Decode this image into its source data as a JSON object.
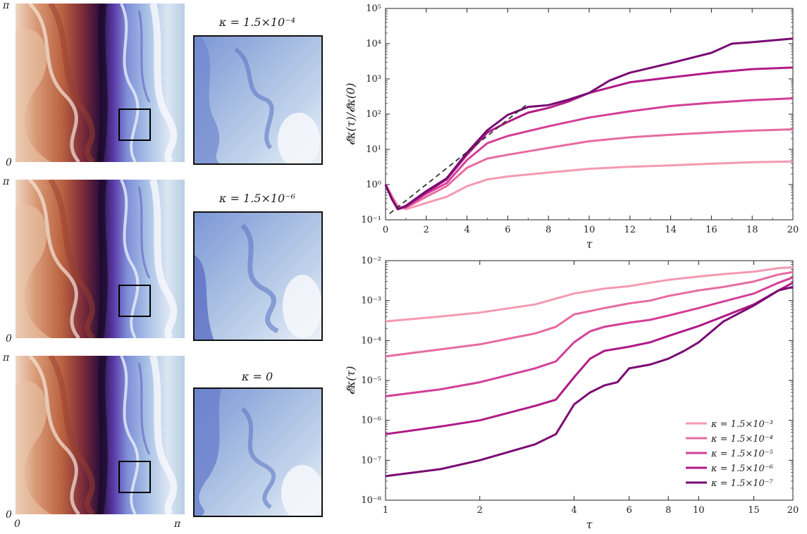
{
  "fields": [
    {
      "axis_top": "π",
      "axis_bottom": "0",
      "zoom_title": "κ = 1.5×10⁻⁴"
    },
    {
      "axis_top": "π",
      "axis_bottom": "0",
      "zoom_title": "κ = 1.5×10⁻⁶"
    },
    {
      "axis_top": "π",
      "axis_bottom": "0",
      "zoom_title": "κ = 0"
    }
  ],
  "field_xaxis": {
    "left": "0",
    "right": "π"
  },
  "colors": {
    "k1": "#f49ab1",
    "k2": "#e86aa0",
    "k3": "#d43f97",
    "k4": "#b01a86",
    "k5": "#7a0a73",
    "dashed": "#333333"
  },
  "chart_data": [
    {
      "type": "line",
      "xlabel": "τ",
      "ylabel": "𝓔κ(τ)/𝓔κ(0)",
      "yscale": "log",
      "xlim": [
        0,
        20
      ],
      "ylim": [
        0.1,
        100000
      ],
      "xticks": [
        "0",
        "2",
        "4",
        "6",
        "8",
        "10",
        "12",
        "14",
        "16",
        "18",
        "20"
      ],
      "yticks": [
        "10⁻¹",
        "10⁰",
        "10¹",
        "10²",
        "10³",
        "10⁴",
        "10⁵"
      ],
      "grid": false,
      "series": [
        {
          "color": "k1",
          "x": [
            0,
            0.3,
            0.6,
            1,
            2,
            3,
            4,
            5,
            6,
            8,
            10,
            12,
            14,
            16,
            18,
            20
          ],
          "y": [
            1,
            0.5,
            0.25,
            0.2,
            0.3,
            0.45,
            0.9,
            1.4,
            1.7,
            2.2,
            2.8,
            3.2,
            3.5,
            3.9,
            4.3,
            4.5
          ]
        },
        {
          "color": "k2",
          "x": [
            0,
            0.3,
            0.6,
            1,
            2,
            3,
            4,
            5,
            6,
            8,
            10,
            12,
            14,
            16,
            18,
            20
          ],
          "y": [
            1,
            0.45,
            0.22,
            0.22,
            0.45,
            0.9,
            3,
            5.5,
            7,
            11,
            17,
            22,
            26,
            30,
            34,
            37
          ]
        },
        {
          "color": "k3",
          "x": [
            0,
            0.3,
            0.6,
            1,
            2,
            3,
            4,
            5,
            6,
            8,
            10,
            12,
            14,
            16,
            18,
            20
          ],
          "y": [
            1,
            0.4,
            0.2,
            0.23,
            0.55,
            1.1,
            5,
            15,
            24,
            45,
            80,
            120,
            170,
            210,
            250,
            280
          ]
        },
        {
          "color": "k4",
          "x": [
            0,
            0.3,
            0.6,
            1,
            2,
            3,
            4,
            5,
            6,
            7,
            8,
            9,
            10,
            12,
            14,
            16,
            18,
            20
          ],
          "y": [
            1,
            0.4,
            0.2,
            0.24,
            0.6,
            1.4,
            7,
            30,
            60,
            110,
            150,
            230,
            400,
            800,
            1100,
            1500,
            1900,
            2100
          ]
        },
        {
          "color": "k5",
          "x": [
            0,
            0.3,
            0.6,
            1,
            2,
            3,
            4,
            5,
            6,
            7,
            8,
            9,
            10,
            11,
            12,
            14,
            16,
            17,
            18,
            20
          ],
          "y": [
            1,
            0.4,
            0.2,
            0.25,
            0.65,
            1.5,
            8,
            35,
            95,
            160,
            180,
            260,
            400,
            900,
            1500,
            2800,
            5500,
            10000,
            11000,
            14000
          ]
        },
        {
          "color": "dashed",
          "dashed": true,
          "x": [
            0.2,
            7
          ],
          "y": [
            0.15,
            200
          ]
        }
      ]
    },
    {
      "type": "line",
      "xlabel": "τ",
      "ylabel": "𝓔κ(τ)",
      "xscale": "log",
      "yscale": "log",
      "xlim": [
        1,
        20
      ],
      "ylim": [
        1e-08,
        0.01
      ],
      "xticks": [
        "1",
        "2",
        "4",
        "6",
        "8",
        "10",
        "15",
        "20"
      ],
      "xtick_values": [
        1,
        2,
        4,
        6,
        8,
        10,
        15,
        20
      ],
      "yticks": [
        "10⁻⁸",
        "10⁻⁷",
        "10⁻⁶",
        "10⁻⁵",
        "10⁻⁴",
        "10⁻³",
        "10⁻²"
      ],
      "grid": false,
      "legend_position": "bottom-right",
      "series": [
        {
          "name": "κ = 1.5×10⁻³",
          "color": "k1",
          "x": [
            1,
            1.5,
            2,
            3,
            4,
            5,
            6,
            7,
            8,
            10,
            12,
            15,
            18,
            20
          ],
          "y": [
            0.0003,
            0.0004,
            0.0005,
            0.0008,
            0.0015,
            0.002,
            0.0023,
            0.0028,
            0.0033,
            0.004,
            0.0046,
            0.0053,
            0.0065,
            0.0068
          ]
        },
        {
          "name": "κ = 1.5×10⁻⁴",
          "color": "k2",
          "x": [
            1,
            1.5,
            2,
            3,
            3.5,
            4,
            5,
            6,
            7,
            8,
            10,
            12,
            15,
            18,
            20
          ],
          "y": [
            4e-05,
            6e-05,
            8e-05,
            0.00015,
            0.00022,
            0.00045,
            0.00065,
            0.00085,
            0.001,
            0.0013,
            0.0018,
            0.0022,
            0.003,
            0.0045,
            0.0052
          ]
        },
        {
          "name": "κ = 1.5×10⁻⁵",
          "color": "k3",
          "x": [
            1,
            1.5,
            2,
            3,
            3.5,
            4,
            4.5,
            5,
            6,
            7,
            8,
            10,
            12,
            15,
            18,
            20
          ],
          "y": [
            4e-06,
            6e-06,
            9e-06,
            2e-05,
            3e-05,
            9e-05,
            0.00017,
            0.00022,
            0.00028,
            0.00033,
            0.00042,
            0.00065,
            0.00095,
            0.0015,
            0.0028,
            0.0038
          ]
        },
        {
          "name": "κ = 1.5×10⁻⁶",
          "color": "k4",
          "x": [
            1,
            1.5,
            2,
            3,
            3.5,
            4,
            4.5,
            5,
            6,
            7,
            8,
            10,
            12,
            15,
            18,
            20
          ],
          "y": [
            4.5e-07,
            7e-07,
            1e-06,
            2.3e-06,
            3.3e-06,
            1.2e-05,
            3.5e-05,
            5.5e-05,
            7e-05,
            9e-05,
            0.00013,
            0.00023,
            0.0004,
            0.0008,
            0.0018,
            0.0028
          ]
        },
        {
          "name": "κ = 1.5×10⁻⁷",
          "color": "k5",
          "x": [
            1,
            1.5,
            2,
            3,
            3.5,
            4,
            4.5,
            5,
            5.5,
            6,
            7,
            8,
            9,
            10,
            12,
            15,
            18,
            20
          ],
          "y": [
            4e-08,
            6e-08,
            1e-07,
            2.5e-07,
            4.5e-07,
            2.5e-06,
            5e-06,
            7.5e-06,
            9e-06,
            2e-05,
            2.5e-05,
            3.5e-05,
            5.5e-05,
            9e-05,
            0.0003,
            0.00075,
            0.0018,
            0.0022
          ]
        }
      ]
    }
  ]
}
